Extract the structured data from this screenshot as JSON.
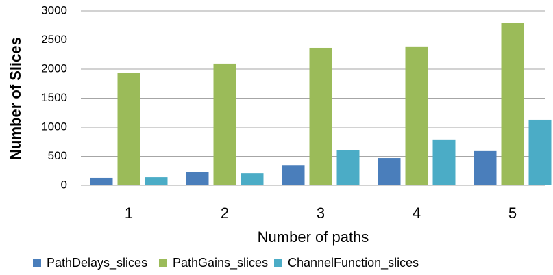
{
  "chart_data": {
    "type": "bar",
    "categories": [
      "1",
      "2",
      "3",
      "4",
      "5"
    ],
    "series": [
      {
        "name": "PathDelays_slices",
        "color": "#4a7ebb",
        "values": [
          130,
          235,
          350,
          470,
          590
        ]
      },
      {
        "name": "PathGains_slices",
        "color": "#9bbb59",
        "values": [
          1940,
          2095,
          2365,
          2390,
          2790
        ]
      },
      {
        "name": "ChannelFunction_slices",
        "color": "#4bacc6",
        "values": [
          140,
          210,
          600,
          790,
          1130
        ]
      }
    ],
    "xlabel": "Number of paths",
    "ylabel": "Number of Slices",
    "ylim": [
      0,
      3000
    ],
    "yticks": [
      0,
      500,
      1000,
      1500,
      2000,
      2500,
      3000
    ],
    "grid": true,
    "legend": "bottom"
  }
}
